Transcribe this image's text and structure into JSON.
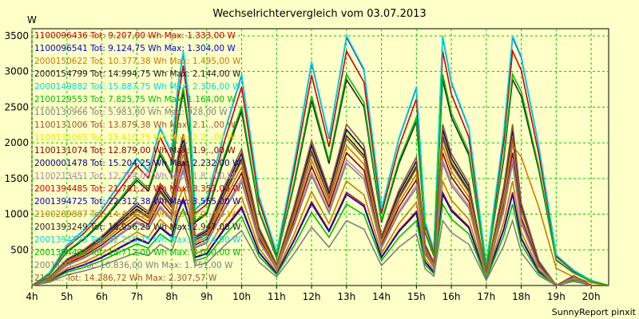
{
  "chart_data": {
    "type": "line",
    "title": "Wechselrichtervergleich vom 03.07.2013",
    "ylabel": "W",
    "footer": "SunnyReport pinxit",
    "x_ticks": [
      "4h",
      "5h",
      "6h",
      "7h",
      "8h",
      "9h",
      "10h",
      "11h",
      "12h",
      "13h",
      "14h",
      "15h",
      "16h",
      "17h",
      "18h",
      "19h",
      "20h"
    ],
    "y_ticks": [
      500,
      1000,
      1500,
      2000,
      2500,
      3000,
      3500
    ],
    "xlim": [
      4,
      20.5
    ],
    "ylim": [
      0,
      3600
    ],
    "grid": true,
    "legend_position": "top-left inside",
    "legend": [
      {
        "text": "1100096436 Tot: 9.207,00 Wh Max: 1.333,00 W",
        "color": "#cc0000"
      },
      {
        "text": "1100096541 Tot: 9.124,75 Wh Max: 1.304,00 W",
        "color": "#0000cc"
      },
      {
        "text": "2000150622 Tot: 10.377,38 Wh Max: 1.495,00 W",
        "color": "#cc7a00"
      },
      {
        "text": "2000154799 Tot: 14.994,75 Wh Max: 2.144,00 W",
        "color": "#222222"
      },
      {
        "text": "2000149882 Tot: 15.887,75 Wh Max: 2.306,00 W",
        "color": "#00d8e0"
      },
      {
        "text": "2100129553 Tot: 7.825,75 Wh Max: 1.164,00 W",
        "color": "#00bb00"
      },
      {
        "text": "1100130966 Tot: 5.983,00 Wh Max: 928,00 W",
        "color": "#808080"
      },
      {
        "text": "1100131006 Tot: 13.879,38 Wh Max: 2.1..,00 W",
        "color": "#a0522d"
      },
      {
        "text": "1100131065 Tot: 15.410,75 Wh Max: 2.2..,00 W",
        "color": "#e8e800"
      },
      {
        "text": "1100131074 Tot: 12.879,00 Wh Max: 1.9..,00 W",
        "color": "#800000"
      },
      {
        "text": "2000001478 Tot: 15.204,25 Wh Max: 2.232,00 W",
        "color": "#000080"
      },
      {
        "text": "1100213451 Tot: 12.784,00 Wh Max: 1.8..,00 W",
        "color": "#c080c0"
      },
      {
        "text": "2001394485 Tot: 21.781,25 Wh Max: 3.353,00 W",
        "color": "#cc0000"
      },
      {
        "text": "2001394725 Tot: 22.312,38 Wh Max: 3.555,00 W",
        "color": "#0000cc"
      },
      {
        "text": "2100289887 Tot: 14.412,50 Wh Max: 2.0..,00 W",
        "color": "#cc7a00"
      },
      {
        "text": "2001393249 Tot: 18.956,25 Wh Max: 2.947,00 W",
        "color": "#222222"
      },
      {
        "text": "2001394723 Tot: 22.215,75 Wh Max: 3.574,00 W",
        "color": "#00d8e0"
      },
      {
        "text": "2001394491 Tot: 18.712,00 Wh Max: 3.020,00 W",
        "color": "#00bb00"
      },
      {
        "text": "2001103... Tot: 10.836,00 Wh Max: 1.751,00 W",
        "color": "#808080"
      },
      {
        "text": "2100... Tot: 14.286,72 Wh Max: 2.307,57 W",
        "color": "#a0522d"
      }
    ],
    "x": [
      4,
      4.5,
      5,
      5.5,
      6,
      6.5,
      7,
      7.33,
      7.67,
      8,
      8.17,
      8.33,
      8.5,
      8.67,
      9,
      9.5,
      10,
      10.5,
      11,
      11.5,
      12,
      12.5,
      13,
      13.5,
      14,
      14.5,
      15,
      15.25,
      15.5,
      15.75,
      16,
      16.5,
      17,
      17.5,
      17.75,
      18,
      18.5,
      19,
      19.5,
      20,
      20.5
    ],
    "base": [
      0,
      0.05,
      0.16,
      0.22,
      0.3,
      0.4,
      0.5,
      0.45,
      0.62,
      0.52,
      0.78,
      0.92,
      0.72,
      0.3,
      0.34,
      0.6,
      0.83,
      0.35,
      0.13,
      0.48,
      0.88,
      0.58,
      0.98,
      0.85,
      0.3,
      0.58,
      0.78,
      0.25,
      0.14,
      0.98,
      0.8,
      0.62,
      0.08,
      0.6,
      0.98,
      0.5,
      0.15,
      0,
      0.06,
      0,
      0
    ],
    "base_late": [
      0,
      0.05,
      0.16,
      0.22,
      0.3,
      0.4,
      0.5,
      0.45,
      0.62,
      0.52,
      0.78,
      0.92,
      0.72,
      0.3,
      0.34,
      0.6,
      0.83,
      0.35,
      0.13,
      0.48,
      0.88,
      0.58,
      0.98,
      0.85,
      0.3,
      0.58,
      0.78,
      0.25,
      0.14,
      0.98,
      0.8,
      0.62,
      0.08,
      0.6,
      0.98,
      0.9,
      0.55,
      0.12,
      0.06,
      0.02,
      0
    ],
    "series": [
      {
        "name": "1100096436",
        "color": "#cc0000",
        "scale": 1333,
        "late": false
      },
      {
        "name": "1100096541",
        "color": "#0000cc",
        "scale": 1304,
        "late": false
      },
      {
        "name": "2000150622",
        "color": "#cc7a00",
        "scale": 1495,
        "late": false
      },
      {
        "name": "2000154799",
        "color": "#222222",
        "scale": 2144,
        "late": false
      },
      {
        "name": "2000149882",
        "color": "#00d8e0",
        "scale": 2306,
        "late": false
      },
      {
        "name": "2100129553",
        "color": "#00bb00",
        "scale": 1164,
        "late": false
      },
      {
        "name": "1100130966",
        "color": "#808080",
        "scale": 928,
        "late": false
      },
      {
        "name": "1100131006",
        "color": "#a0522d",
        "scale": 2100,
        "late": false
      },
      {
        "name": "1100131065",
        "color": "#e8e800",
        "scale": 2200,
        "late": false
      },
      {
        "name": "1100131074",
        "color": "#800000",
        "scale": 1900,
        "late": false
      },
      {
        "name": "2000001478",
        "color": "#000080",
        "scale": 2232,
        "late": false
      },
      {
        "name": "1100213451",
        "color": "#c080c0",
        "scale": 1800,
        "late": false
      },
      {
        "name": "2001394485",
        "color": "#cc0000",
        "scale": 3353,
        "late": true
      },
      {
        "name": "2001394725",
        "color": "#0000cc",
        "scale": 3555,
        "late": true
      },
      {
        "name": "2100289887",
        "color": "#cc7a00",
        "scale": 2000,
        "late": true
      },
      {
        "name": "2001393249",
        "color": "#222222",
        "scale": 2947,
        "late": true
      },
      {
        "name": "2001394723",
        "color": "#00d8e0",
        "scale": 3574,
        "late": true
      },
      {
        "name": "2001394491",
        "color": "#00bb00",
        "scale": 3020,
        "late": true
      },
      {
        "name": "2001103...",
        "color": "#808080",
        "scale": 1751,
        "late": false
      },
      {
        "name": "2100...",
        "color": "#a0522d",
        "scale": 2307,
        "late": false
      }
    ]
  }
}
